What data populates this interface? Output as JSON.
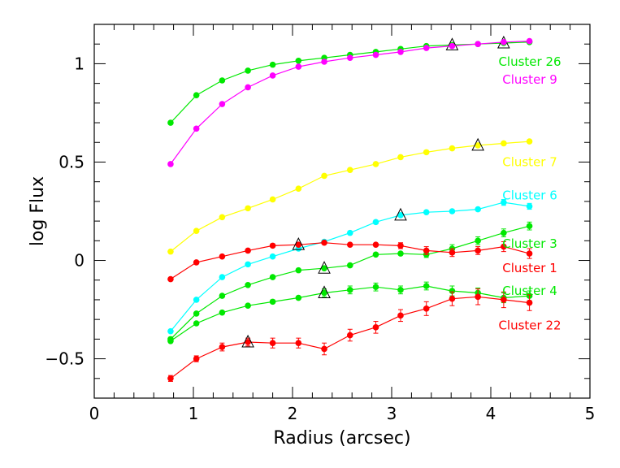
{
  "chart_data": {
    "type": "scatter",
    "xlabel": "Radius (arcsec)",
    "ylabel": "log Flux",
    "xlim": [
      0,
      5
    ],
    "ylim": [
      -0.7,
      1.2
    ],
    "xticks": [
      0,
      1,
      2,
      3,
      4,
      5
    ],
    "yticks": [
      -0.5,
      0,
      0.5,
      1
    ],
    "ytick_labels": [
      "−0.5",
      "0",
      "0.5",
      "1"
    ],
    "grid": false,
    "x": [
      0.77,
      1.03,
      1.29,
      1.55,
      1.8,
      2.06,
      2.32,
      2.58,
      2.84,
      3.09,
      3.35,
      3.61,
      3.87,
      4.13,
      4.39
    ],
    "series": [
      {
        "name": "Cluster 26",
        "color": "#00e800",
        "values": [
          0.7,
          0.84,
          0.915,
          0.965,
          0.995,
          1.015,
          1.03,
          1.045,
          1.06,
          1.075,
          1.09,
          1.095,
          1.1,
          1.105,
          1.11
        ],
        "errors": [
          0,
          0,
          0,
          0,
          0,
          0,
          0,
          0,
          0,
          0,
          0,
          0,
          0,
          0,
          0
        ],
        "triangles_at": [
          3.61,
          4.13
        ]
      },
      {
        "name": "Cluster 9",
        "color": "#ff00ff",
        "values": [
          0.49,
          0.67,
          0.795,
          0.88,
          0.94,
          0.985,
          1.01,
          1.03,
          1.045,
          1.06,
          1.08,
          1.09,
          1.1,
          1.11,
          1.115
        ],
        "errors": [
          0,
          0,
          0,
          0,
          0,
          0,
          0,
          0,
          0,
          0,
          0,
          0,
          0,
          0,
          0
        ],
        "triangles_at": []
      },
      {
        "name": "Cluster 7",
        "color": "#ffff00",
        "values": [
          0.045,
          0.15,
          0.22,
          0.265,
          0.31,
          0.365,
          0.43,
          0.46,
          0.49,
          0.525,
          0.55,
          0.57,
          0.585,
          0.595,
          0.605
        ],
        "errors": [
          0,
          0,
          0,
          0,
          0,
          0,
          0,
          0,
          0,
          0,
          0,
          0,
          0,
          0,
          0
        ],
        "triangles_at": [
          3.87
        ]
      },
      {
        "name": "Cluster 6",
        "color": "#00ffff",
        "values": [
          -0.36,
          -0.2,
          -0.085,
          -0.02,
          0.02,
          0.06,
          0.095,
          0.14,
          0.195,
          0.23,
          0.245,
          0.25,
          0.26,
          0.295,
          0.275
        ],
        "errors": [
          0,
          0,
          0,
          0,
          0,
          0,
          0,
          0,
          0,
          0,
          0,
          0,
          0,
          0.015,
          0.015
        ],
        "triangles_at": [
          3.09
        ]
      },
      {
        "name": "Cluster 3",
        "color": "#00e800",
        "values": [
          -0.4,
          -0.27,
          -0.18,
          -0.125,
          -0.085,
          -0.05,
          -0.04,
          -0.025,
          0.03,
          0.035,
          0.03,
          0.06,
          0.1,
          0.14,
          0.175
        ],
        "errors": [
          0,
          0,
          0,
          0,
          0,
          0,
          0,
          0,
          0,
          0,
          0.015,
          0.02,
          0.02,
          0.02,
          0.02
        ],
        "triangles_at": [
          2.32
        ]
      },
      {
        "name": "Cluster 1",
        "color": "#ff0000",
        "values": [
          -0.095,
          -0.01,
          0.02,
          0.05,
          0.075,
          0.08,
          0.09,
          0.08,
          0.08,
          0.075,
          0.05,
          0.04,
          0.05,
          0.07,
          0.035
        ],
        "errors": [
          0,
          0,
          0,
          0,
          0,
          0,
          0,
          0,
          0,
          0.015,
          0.02,
          0.02,
          0.02,
          0.025,
          0.025
        ],
        "triangles_at": [
          2.06
        ]
      },
      {
        "name": "Cluster 4",
        "color": "#00e800",
        "values": [
          -0.41,
          -0.32,
          -0.265,
          -0.23,
          -0.21,
          -0.19,
          -0.165,
          -0.15,
          -0.135,
          -0.15,
          -0.13,
          -0.155,
          -0.165,
          -0.19,
          -0.18
        ],
        "errors": [
          0,
          0,
          0,
          0,
          0,
          0,
          0.02,
          0.02,
          0.02,
          0.02,
          0.02,
          0.025,
          0.025,
          0.025,
          0.025
        ],
        "triangles_at": [
          2.32
        ]
      },
      {
        "name": "Cluster 22",
        "color": "#ff0000",
        "values": [
          -0.6,
          -0.5,
          -0.44,
          -0.415,
          -0.42,
          -0.42,
          -0.45,
          -0.38,
          -0.34,
          -0.28,
          -0.245,
          -0.195,
          -0.185,
          -0.2,
          -0.215
        ],
        "errors": [
          0.015,
          0.015,
          0.02,
          0.02,
          0.025,
          0.025,
          0.03,
          0.03,
          0.03,
          0.03,
          0.035,
          0.035,
          0.04,
          0.04,
          0.04
        ],
        "triangles_at": [
          1.55
        ]
      }
    ],
    "legend": [
      {
        "text": "Cluster 26",
        "color": "#00e800",
        "y": 1.01
      },
      {
        "text": "Cluster 9",
        "color": "#ff00ff",
        "y": 0.92
      },
      {
        "text": "Cluster 7",
        "color": "#ffff00",
        "y": 0.5
      },
      {
        "text": "Cluster 6",
        "color": "#00ffff",
        "y": 0.33
      },
      {
        "text": "Cluster 3",
        "color": "#00e800",
        "y": 0.085
      },
      {
        "text": "Cluster 1",
        "color": "#ff0000",
        "y": -0.04
      },
      {
        "text": "Cluster 4",
        "color": "#00e800",
        "y": -0.155
      },
      {
        "text": "Cluster 22",
        "color": "#ff0000",
        "y": -0.33
      }
    ]
  }
}
